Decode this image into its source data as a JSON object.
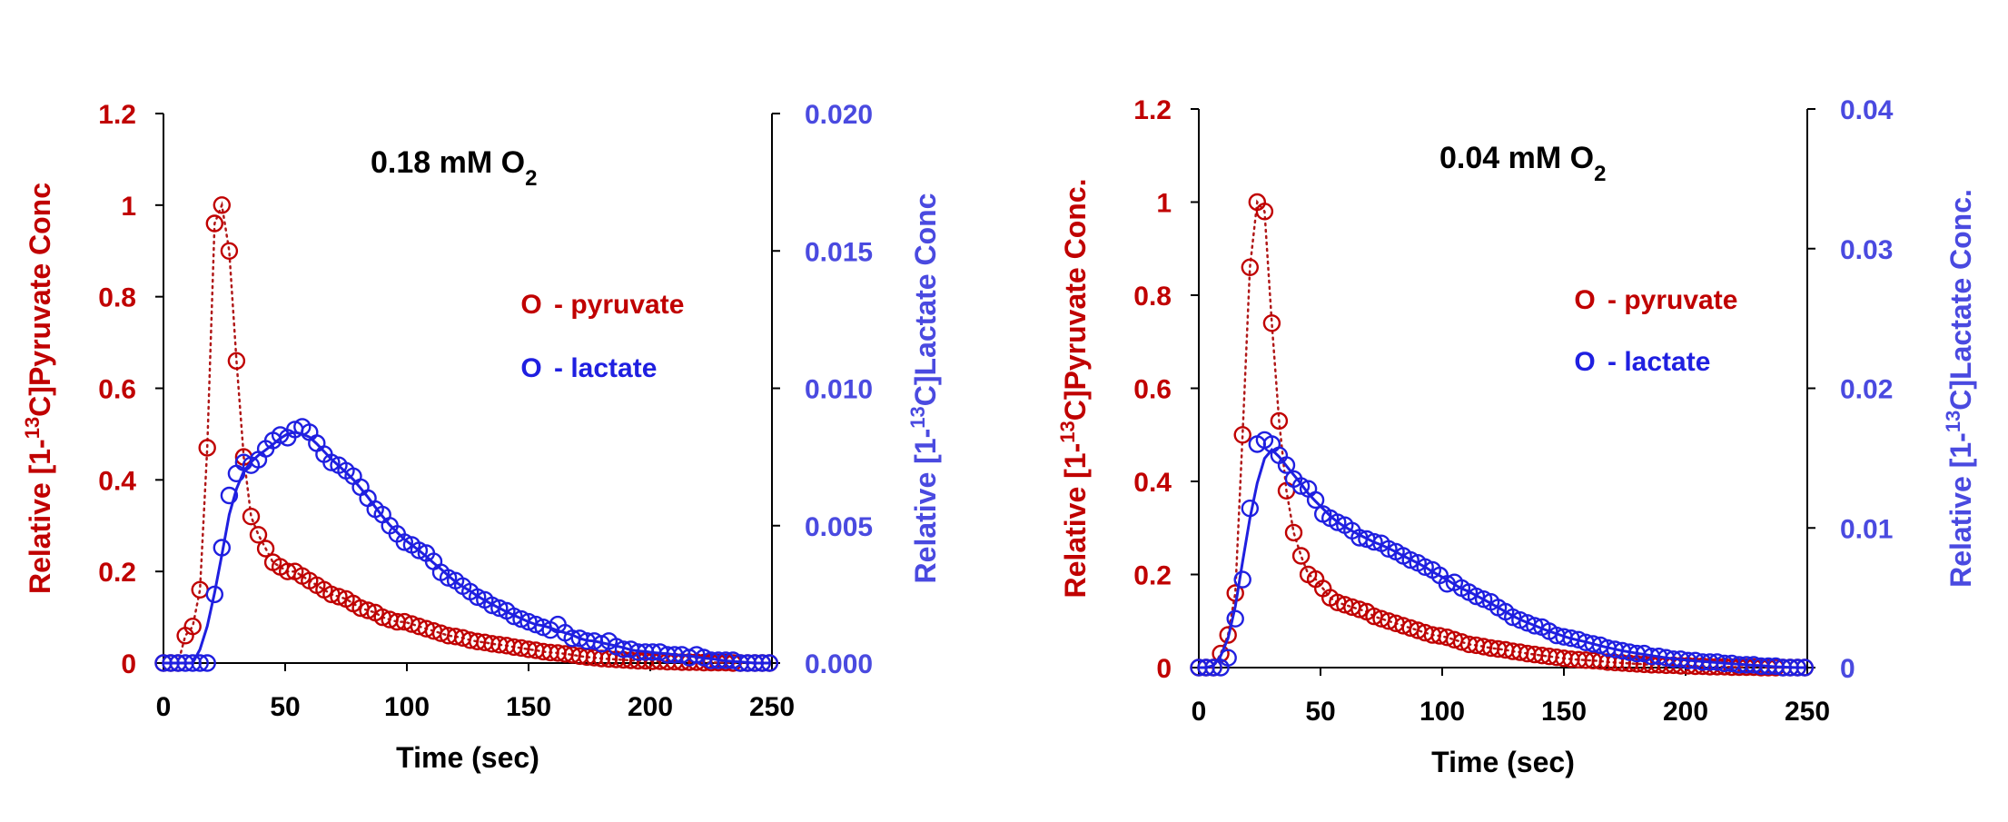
{
  "colors": {
    "pyruvate": "#c00000",
    "lactate": "#1f1fe0",
    "lactate_axis": "#4a4ae0",
    "axis": "#000000",
    "pyruvate_fit": "#b01818"
  },
  "chart_data": [
    {
      "type": "scatter",
      "title_main": "0.18 mM O",
      "title_sub": "2",
      "xlabel": "Time (sec)",
      "ylabel_left": {
        "pre": "Relative [1-",
        "sup": "13",
        "post": "C]Pyruvate Conc"
      },
      "ylabel_right": {
        "pre": "Relative [1-",
        "sup": "13",
        "post": "C]Lactate Conc"
      },
      "xlim": [
        0,
        250
      ],
      "ylim_left": [
        0,
        1.2
      ],
      "ylim_right": [
        0,
        0.02
      ],
      "x_ticks": [
        "0",
        "50",
        "100",
        "150",
        "200",
        "250"
      ],
      "y_left_ticks": [
        "0",
        "0.2",
        "0.4",
        "0.6",
        "0.8",
        "1",
        "1.2"
      ],
      "y_right_ticks": [
        "0.000",
        "0.005",
        "0.010",
        "0.015",
        "0.020"
      ],
      "legend": [
        {
          "symbol": "O",
          "label": "- pyruvate",
          "series": "pyruvate"
        },
        {
          "symbol": "O",
          "label": "- lactate",
          "series": "lactate"
        }
      ],
      "legend_position": "right",
      "series": [
        {
          "name": "pyruvate",
          "axis": "left",
          "fit": "dotted",
          "x": [
            0,
            3,
            6,
            9,
            12,
            15,
            18,
            21,
            24,
            27,
            30,
            33,
            36,
            39,
            42,
            45,
            48,
            51,
            54,
            57,
            60,
            63,
            66,
            69,
            72,
            75,
            78,
            81,
            84,
            87,
            90,
            93,
            96,
            99,
            102,
            105,
            108,
            111,
            114,
            117,
            120,
            123,
            126,
            129,
            132,
            135,
            138,
            141,
            144,
            147,
            150,
            153,
            156,
            159,
            162,
            165,
            168,
            171,
            174,
            177,
            180,
            183,
            186,
            189,
            192,
            195,
            198,
            201,
            204,
            207,
            210,
            213,
            216,
            219,
            222,
            225,
            228,
            231,
            234,
            237,
            240,
            243,
            246,
            249
          ],
          "y": [
            0,
            0,
            0,
            0.06,
            0.08,
            0.16,
            0.47,
            0.96,
            1.0,
            0.9,
            0.66,
            0.45,
            0.32,
            0.28,
            0.25,
            0.22,
            0.21,
            0.2,
            0.2,
            0.19,
            0.18,
            0.17,
            0.16,
            0.15,
            0.145,
            0.14,
            0.13,
            0.12,
            0.115,
            0.11,
            0.1,
            0.095,
            0.09,
            0.09,
            0.085,
            0.08,
            0.075,
            0.07,
            0.065,
            0.06,
            0.058,
            0.055,
            0.05,
            0.047,
            0.045,
            0.042,
            0.04,
            0.038,
            0.035,
            0.033,
            0.03,
            0.028,
            0.025,
            0.023,
            0.022,
            0.02,
            0.018,
            0.015,
            0.013,
            0.012,
            0.01,
            0.009,
            0.008,
            0.007,
            0.006,
            0.005,
            0.005,
            0.004,
            0.004,
            0.003,
            0.003,
            0.002,
            0.002,
            0.002,
            0.001,
            0.001,
            0.001,
            0.001,
            0,
            0,
            0,
            0,
            0,
            0
          ]
        },
        {
          "name": "lactate",
          "axis": "right",
          "fit": "solid",
          "x": [
            0,
            3,
            6,
            9,
            12,
            15,
            18,
            21,
            24,
            27,
            30,
            33,
            36,
            39,
            42,
            45,
            48,
            51,
            54,
            57,
            60,
            63,
            66,
            69,
            72,
            75,
            78,
            81,
            84,
            87,
            90,
            93,
            96,
            99,
            102,
            105,
            108,
            111,
            114,
            117,
            120,
            123,
            126,
            129,
            132,
            135,
            138,
            141,
            144,
            147,
            150,
            153,
            156,
            159,
            162,
            165,
            168,
            171,
            174,
            177,
            180,
            183,
            186,
            189,
            192,
            195,
            198,
            201,
            204,
            207,
            210,
            213,
            216,
            219,
            222,
            225,
            228,
            231,
            234,
            237,
            240,
            243,
            246,
            249
          ],
          "y": [
            0,
            0,
            0,
            0,
            0,
            0,
            0,
            0.0025,
            0.0042,
            0.0061,
            0.0069,
            0.0073,
            0.0072,
            0.0074,
            0.0078,
            0.0081,
            0.0083,
            0.0082,
            0.0085,
            0.0086,
            0.0084,
            0.008,
            0.0076,
            0.0073,
            0.0072,
            0.007,
            0.0068,
            0.0064,
            0.006,
            0.0056,
            0.0054,
            0.005,
            0.0047,
            0.0044,
            0.0043,
            0.0041,
            0.004,
            0.0037,
            0.0033,
            0.0031,
            0.003,
            0.0028,
            0.0026,
            0.0024,
            0.0023,
            0.0021,
            0.002,
            0.0019,
            0.0017,
            0.0016,
            0.0015,
            0.0014,
            0.0013,
            0.0012,
            0.0014,
            0.0011,
            0.0009,
            0.0009,
            0.0008,
            0.0008,
            0.0007,
            0.0008,
            0.0006,
            0.0005,
            0.0005,
            0.0004,
            0.0004,
            0.0004,
            0.0004,
            0.0003,
            0.0003,
            0.0003,
            0.0002,
            0.0003,
            0.0002,
            0.0001,
            0.0001,
            0.0001,
            0.0001,
            0,
            0,
            0,
            0,
            0
          ]
        }
      ]
    },
    {
      "type": "scatter",
      "title_main": "0.04 mM O",
      "title_sub": "2",
      "xlabel": "Time (sec)",
      "ylabel_left": {
        "pre": "Relative [1-",
        "sup": "13",
        "post": "C]Pyruvate Conc."
      },
      "ylabel_right": {
        "pre": "Relative [1-",
        "sup": "13",
        "post": "C]Lactate Conc."
      },
      "xlim": [
        0,
        250
      ],
      "ylim_left": [
        0,
        1.2
      ],
      "ylim_right": [
        0,
        0.04
      ],
      "x_ticks": [
        "0",
        "50",
        "100",
        "150",
        "200",
        "250"
      ],
      "y_left_ticks": [
        "0",
        "0.2",
        "0.4",
        "0.6",
        "0.8",
        "1",
        "1.2"
      ],
      "y_right_ticks": [
        "0",
        "0.01",
        "0.02",
        "0.03",
        "0.04"
      ],
      "legend": [
        {
          "symbol": "O",
          "label": "- pyruvate",
          "series": "pyruvate"
        },
        {
          "symbol": "O",
          "label": "- lactate",
          "series": "lactate"
        }
      ],
      "legend_position": "right",
      "series": [
        {
          "name": "pyruvate",
          "axis": "left",
          "fit": "dotted",
          "x": [
            0,
            3,
            6,
            9,
            12,
            15,
            18,
            21,
            24,
            27,
            30,
            33,
            36,
            39,
            42,
            45,
            48,
            51,
            54,
            57,
            60,
            63,
            66,
            69,
            72,
            75,
            78,
            81,
            84,
            87,
            90,
            93,
            96,
            99,
            102,
            105,
            108,
            111,
            114,
            117,
            120,
            123,
            126,
            129,
            132,
            135,
            138,
            141,
            144,
            147,
            150,
            153,
            156,
            159,
            162,
            165,
            168,
            171,
            174,
            177,
            180,
            183,
            186,
            189,
            192,
            195,
            198,
            201,
            204,
            207,
            210,
            213,
            216,
            219,
            222,
            225,
            228,
            231,
            234,
            237,
            240,
            243,
            246,
            249
          ],
          "y": [
            0,
            0,
            0,
            0.03,
            0.07,
            0.16,
            0.5,
            0.86,
            1.0,
            0.98,
            0.74,
            0.53,
            0.38,
            0.29,
            0.24,
            0.2,
            0.19,
            0.17,
            0.15,
            0.14,
            0.135,
            0.13,
            0.125,
            0.12,
            0.11,
            0.105,
            0.1,
            0.095,
            0.09,
            0.085,
            0.08,
            0.075,
            0.07,
            0.068,
            0.065,
            0.06,
            0.055,
            0.05,
            0.048,
            0.045,
            0.042,
            0.04,
            0.038,
            0.035,
            0.033,
            0.03,
            0.028,
            0.026,
            0.024,
            0.022,
            0.02,
            0.018,
            0.017,
            0.016,
            0.015,
            0.014,
            0.012,
            0.011,
            0.01,
            0.009,
            0.008,
            0.007,
            0.006,
            0.006,
            0.005,
            0.005,
            0.004,
            0.004,
            0.003,
            0.003,
            0.002,
            0.002,
            0.002,
            0.001,
            0.001,
            0.001,
            0.001,
            0,
            0,
            0,
            0,
            0,
            0,
            0
          ]
        },
        {
          "name": "lactate",
          "axis": "right",
          "fit": "solid",
          "x": [
            0,
            3,
            6,
            9,
            12,
            15,
            18,
            21,
            24,
            27,
            30,
            33,
            36,
            39,
            42,
            45,
            48,
            51,
            54,
            57,
            60,
            63,
            66,
            69,
            72,
            75,
            78,
            81,
            84,
            87,
            90,
            93,
            96,
            99,
            102,
            105,
            108,
            111,
            114,
            117,
            120,
            123,
            126,
            129,
            132,
            135,
            138,
            141,
            144,
            147,
            150,
            153,
            156,
            159,
            162,
            165,
            168,
            171,
            174,
            177,
            180,
            183,
            186,
            189,
            192,
            195,
            198,
            201,
            204,
            207,
            210,
            213,
            216,
            219,
            222,
            225,
            228,
            231,
            234,
            237,
            240,
            243,
            246,
            249
          ],
          "y": [
            0,
            0,
            0,
            0,
            0.0007,
            0.0035,
            0.0063,
            0.0114,
            0.016,
            0.0163,
            0.016,
            0.0152,
            0.0145,
            0.0135,
            0.013,
            0.0128,
            0.012,
            0.011,
            0.0107,
            0.0104,
            0.0102,
            0.0098,
            0.0093,
            0.0092,
            0.009,
            0.0089,
            0.0085,
            0.0083,
            0.008,
            0.0077,
            0.0075,
            0.0072,
            0.007,
            0.0066,
            0.006,
            0.0061,
            0.0057,
            0.0054,
            0.0051,
            0.0049,
            0.0047,
            0.0043,
            0.004,
            0.0036,
            0.0034,
            0.0032,
            0.003,
            0.0029,
            0.0026,
            0.0023,
            0.0022,
            0.0021,
            0.002,
            0.0018,
            0.0017,
            0.0016,
            0.0014,
            0.0013,
            0.0012,
            0.0011,
            0.001,
            0.001,
            0.0008,
            0.0008,
            0.0007,
            0.0006,
            0.0006,
            0.0005,
            0.0005,
            0.0004,
            0.0004,
            0.0004,
            0.0003,
            0.0003,
            0.0002,
            0.0002,
            0.0002,
            0.0001,
            0.0001,
            0.0001,
            0,
            0,
            0,
            0
          ]
        }
      ]
    }
  ]
}
